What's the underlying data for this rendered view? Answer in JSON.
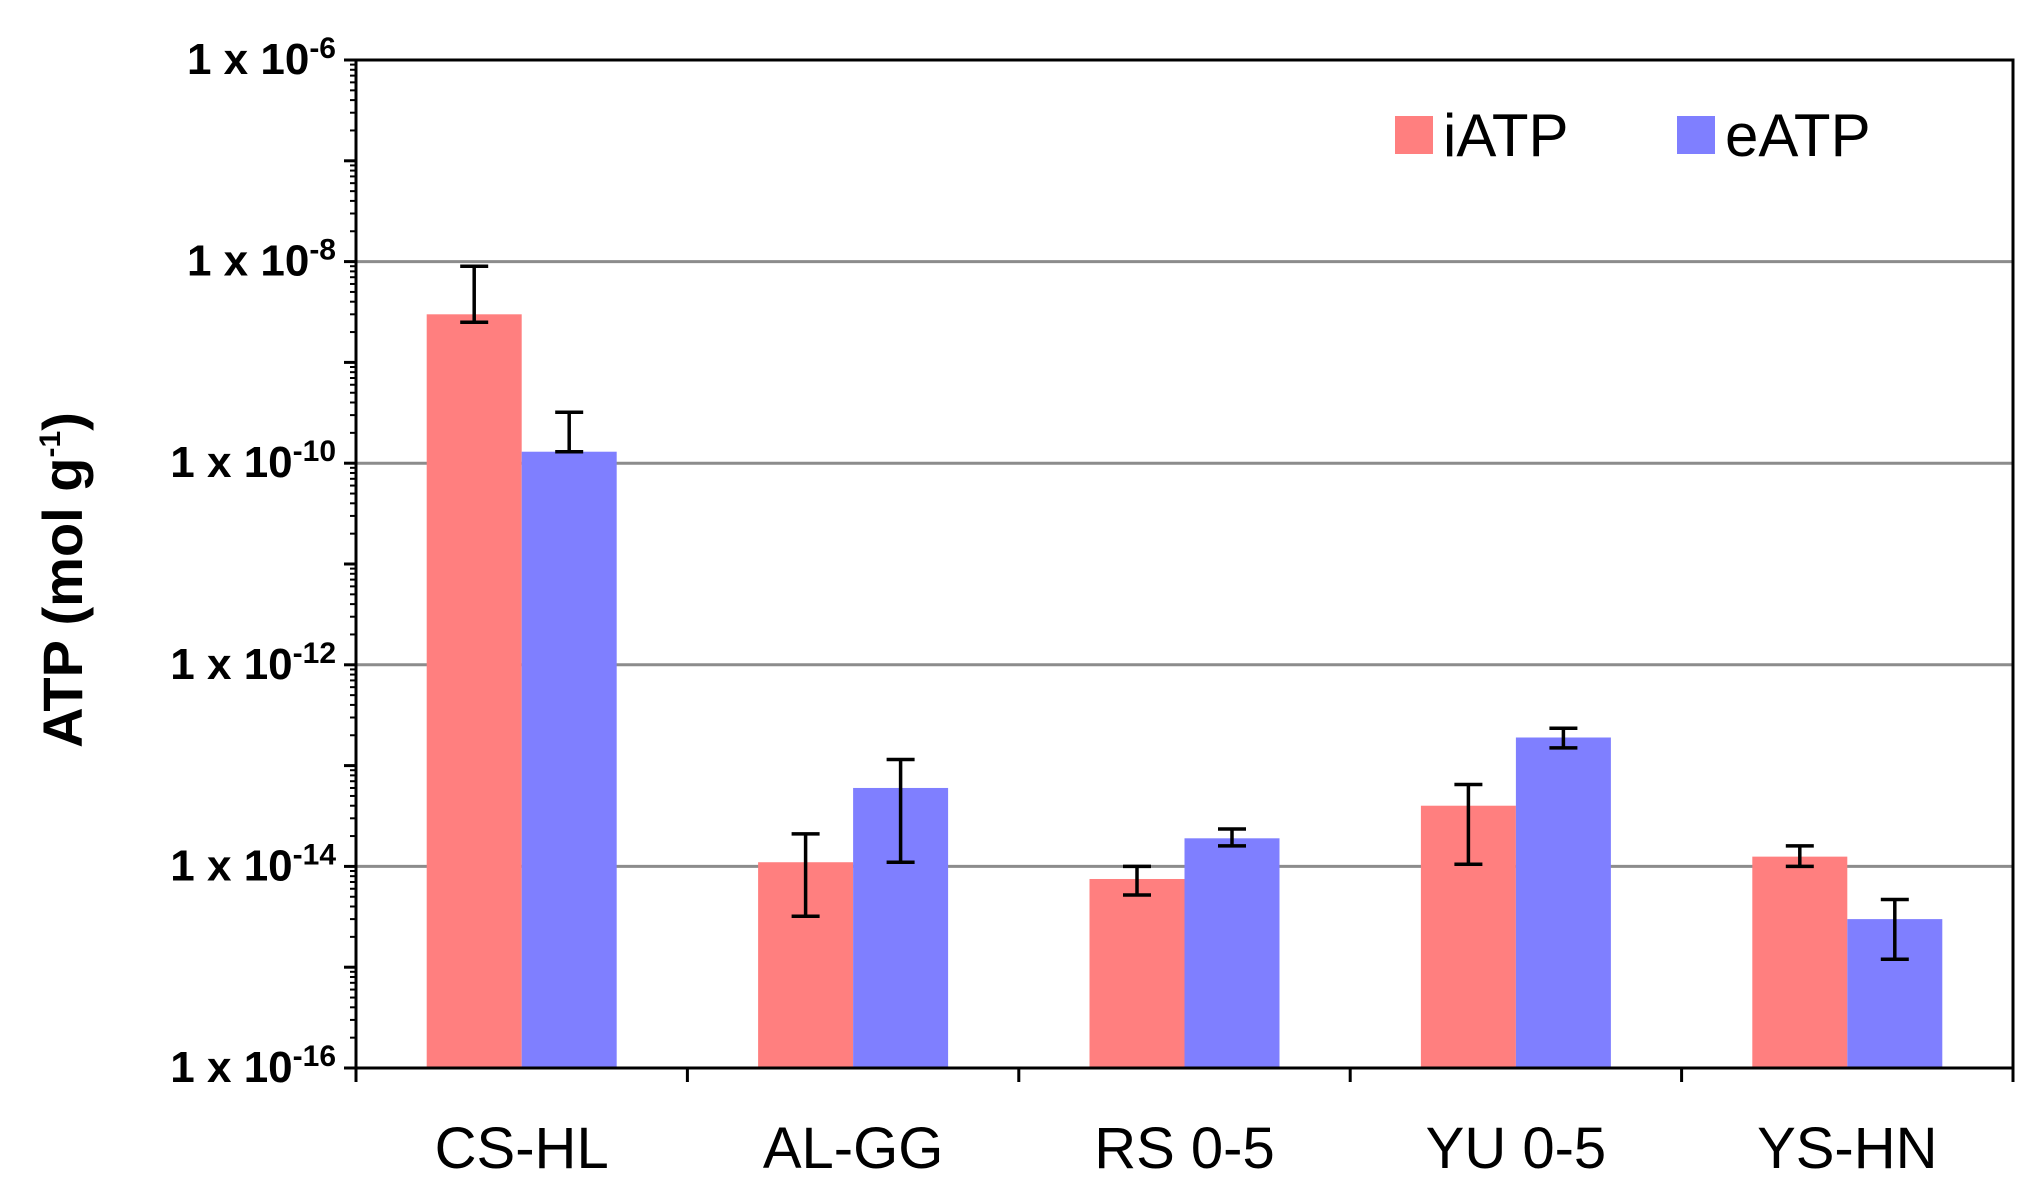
{
  "chart_data": {
    "type": "bar",
    "scale": "log",
    "title": "",
    "xlabel": "",
    "ylabel": "ATP (mol g",
    "ylabel_sup": "-1",
    "ylabel_close": ")",
    "ylim": [
      1e-16,
      1e-06
    ],
    "grid": true,
    "legend_position": "top-right",
    "y_ticks": [
      {
        "value": 1e-16,
        "base": "1 x 10",
        "exp": "-16"
      },
      {
        "value": 1e-14,
        "base": "1 x 10",
        "exp": "-14"
      },
      {
        "value": 1e-12,
        "base": "1 x 10",
        "exp": "-12"
      },
      {
        "value": 1e-10,
        "base": "1 x 10",
        "exp": "-10"
      },
      {
        "value": 1e-08,
        "base": "1 x 10",
        "exp": "-8"
      },
      {
        "value": 1e-06,
        "base": "1 x 10",
        "exp": "-6"
      }
    ],
    "categories": [
      "CS-HL",
      "AL-GG",
      "RS 0-5",
      "YU 0-5",
      "YS-HN"
    ],
    "series": [
      {
        "name": "iATP",
        "color": "#ff7f7f",
        "values": [
          3e-09,
          1.1e-14,
          7.5e-15,
          4e-14,
          1.25e-14
        ],
        "err_low": [
          2.5e-09,
          3.2e-15,
          5.2e-15,
          1.05e-14,
          1e-14
        ],
        "err_high": [
          9e-09,
          2.1e-14,
          1e-14,
          6.5e-14,
          1.6e-14
        ]
      },
      {
        "name": "eATP",
        "color": "#7f7fff",
        "values": [
          1.3e-10,
          6e-14,
          1.9e-14,
          1.9e-13,
          3e-15
        ],
        "err_low": [
          1.3e-10,
          1.1e-14,
          1.6e-14,
          1.5e-13,
          1.2e-15
        ],
        "err_high": [
          3.2e-10,
          1.15e-13,
          2.35e-14,
          2.35e-13,
          4.7e-15
        ]
      }
    ]
  }
}
